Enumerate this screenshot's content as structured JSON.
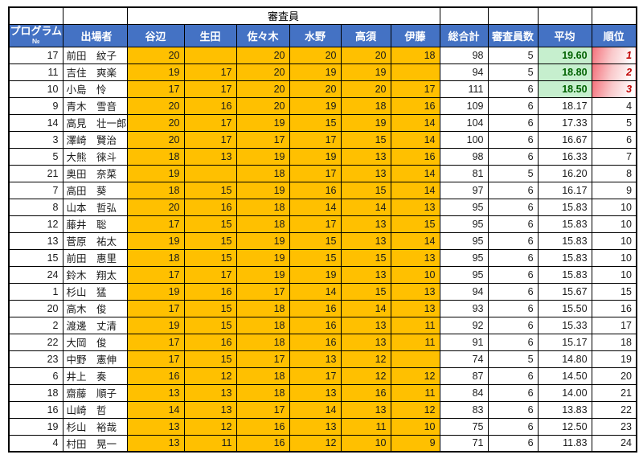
{
  "header": {
    "group_label": "審査員",
    "columns": {
      "program_no_line1": "プログラム",
      "program_no_line2": "№",
      "participant": "出場者",
      "judges": [
        "谷辺",
        "生田",
        "佐々木",
        "水野",
        "高須",
        "伊藤"
      ],
      "total": "総合計",
      "judge_count": "審査員数",
      "average": "平均",
      "rank": "順位"
    }
  },
  "colors": {
    "header_blue": "#4472C4",
    "score_orange": "#FFC000",
    "top3_average_bg": "#C6EFCE",
    "top3_average_text": "#006100",
    "top3_rank_gradient_red": "#F8696B",
    "top3_rank_text": "#C00000"
  },
  "rows": [
    {
      "program_no": "17",
      "name": "前田　紋子",
      "scores": [
        "20",
        "",
        "20",
        "20",
        "20",
        "18"
      ],
      "total": "98",
      "judge_count": "5",
      "average": "19.60",
      "rank": "1",
      "top3": true
    },
    {
      "program_no": "11",
      "name": "吉住　爽楽",
      "scores": [
        "19",
        "17",
        "20",
        "19",
        "19",
        ""
      ],
      "total": "94",
      "judge_count": "5",
      "average": "18.80",
      "rank": "2",
      "top3": true
    },
    {
      "program_no": "10",
      "name": "小島　怜",
      "scores": [
        "17",
        "17",
        "20",
        "20",
        "20",
        "17"
      ],
      "total": "111",
      "judge_count": "6",
      "average": "18.50",
      "rank": "3",
      "top3": true
    },
    {
      "program_no": "9",
      "name": "青木　雪音",
      "scores": [
        "20",
        "16",
        "20",
        "19",
        "18",
        "16"
      ],
      "total": "109",
      "judge_count": "6",
      "average": "18.17",
      "rank": "4",
      "top3": false
    },
    {
      "program_no": "14",
      "name": "高見　壮一郎",
      "scores": [
        "20",
        "17",
        "19",
        "15",
        "19",
        "14"
      ],
      "total": "104",
      "judge_count": "6",
      "average": "17.33",
      "rank": "5",
      "top3": false
    },
    {
      "program_no": "3",
      "name": "澤崎　賢治",
      "scores": [
        "20",
        "17",
        "17",
        "17",
        "15",
        "14"
      ],
      "total": "100",
      "judge_count": "6",
      "average": "16.67",
      "rank": "6",
      "top3": false
    },
    {
      "program_no": "5",
      "name": "大熊　徠斗",
      "scores": [
        "18",
        "13",
        "19",
        "19",
        "13",
        "16"
      ],
      "total": "98",
      "judge_count": "6",
      "average": "16.33",
      "rank": "7",
      "top3": false
    },
    {
      "program_no": "21",
      "name": "奥田　奈菜",
      "scores": [
        "19",
        "",
        "18",
        "17",
        "13",
        "14"
      ],
      "total": "81",
      "judge_count": "5",
      "average": "16.20",
      "rank": "8",
      "top3": false
    },
    {
      "program_no": "7",
      "name": "高田　葵",
      "scores": [
        "18",
        "15",
        "19",
        "16",
        "15",
        "14"
      ],
      "total": "97",
      "judge_count": "6",
      "average": "16.17",
      "rank": "9",
      "top3": false
    },
    {
      "program_no": "8",
      "name": "山本　哲弘",
      "scores": [
        "20",
        "16",
        "18",
        "14",
        "14",
        "13"
      ],
      "total": "95",
      "judge_count": "6",
      "average": "15.83",
      "rank": "10",
      "top3": false
    },
    {
      "program_no": "12",
      "name": "藤井　聡",
      "scores": [
        "17",
        "15",
        "18",
        "17",
        "13",
        "15"
      ],
      "total": "95",
      "judge_count": "6",
      "average": "15.83",
      "rank": "10",
      "top3": false
    },
    {
      "program_no": "13",
      "name": "菅原　祐太",
      "scores": [
        "19",
        "15",
        "19",
        "15",
        "13",
        "14"
      ],
      "total": "95",
      "judge_count": "6",
      "average": "15.83",
      "rank": "10",
      "top3": false
    },
    {
      "program_no": "15",
      "name": "前田　惠里",
      "scores": [
        "18",
        "15",
        "19",
        "15",
        "15",
        "13"
      ],
      "total": "95",
      "judge_count": "6",
      "average": "15.83",
      "rank": "10",
      "top3": false
    },
    {
      "program_no": "24",
      "name": "鈴木　翔太",
      "scores": [
        "17",
        "17",
        "19",
        "19",
        "13",
        "10"
      ],
      "total": "95",
      "judge_count": "6",
      "average": "15.83",
      "rank": "10",
      "top3": false
    },
    {
      "program_no": "1",
      "name": "杉山　猛",
      "scores": [
        "19",
        "16",
        "17",
        "14",
        "15",
        "13"
      ],
      "total": "94",
      "judge_count": "6",
      "average": "15.67",
      "rank": "15",
      "top3": false
    },
    {
      "program_no": "20",
      "name": "高木　俊",
      "scores": [
        "17",
        "15",
        "18",
        "16",
        "14",
        "13"
      ],
      "total": "93",
      "judge_count": "6",
      "average": "15.50",
      "rank": "16",
      "top3": false
    },
    {
      "program_no": "2",
      "name": "渡邊　丈清",
      "scores": [
        "19",
        "15",
        "18",
        "16",
        "13",
        "11"
      ],
      "total": "92",
      "judge_count": "6",
      "average": "15.33",
      "rank": "17",
      "top3": false
    },
    {
      "program_no": "22",
      "name": "大岡　俊",
      "scores": [
        "17",
        "16",
        "18",
        "16",
        "13",
        "11"
      ],
      "total": "91",
      "judge_count": "6",
      "average": "15.17",
      "rank": "18",
      "top3": false
    },
    {
      "program_no": "23",
      "name": "中野　憲伸",
      "scores": [
        "17",
        "15",
        "17",
        "13",
        "12",
        ""
      ],
      "total": "74",
      "judge_count": "5",
      "average": "14.80",
      "rank": "19",
      "top3": false
    },
    {
      "program_no": "6",
      "name": "井上　奏",
      "scores": [
        "16",
        "12",
        "18",
        "17",
        "12",
        "12"
      ],
      "total": "87",
      "judge_count": "6",
      "average": "14.50",
      "rank": "20",
      "top3": false
    },
    {
      "program_no": "18",
      "name": "齋藤　順子",
      "scores": [
        "13",
        "13",
        "18",
        "13",
        "16",
        "11"
      ],
      "total": "84",
      "judge_count": "6",
      "average": "14.00",
      "rank": "21",
      "top3": false
    },
    {
      "program_no": "16",
      "name": "山崎　哲",
      "scores": [
        "14",
        "13",
        "17",
        "14",
        "13",
        "12"
      ],
      "total": "83",
      "judge_count": "6",
      "average": "13.83",
      "rank": "22",
      "top3": false
    },
    {
      "program_no": "19",
      "name": "杉山　裕哉",
      "scores": [
        "13",
        "12",
        "16",
        "13",
        "11",
        "10"
      ],
      "total": "75",
      "judge_count": "6",
      "average": "12.50",
      "rank": "23",
      "top3": false
    },
    {
      "program_no": "4",
      "name": "村田　晃一",
      "scores": [
        "13",
        "11",
        "16",
        "12",
        "10",
        "9"
      ],
      "total": "71",
      "judge_count": "6",
      "average": "11.83",
      "rank": "24",
      "top3": false
    }
  ]
}
